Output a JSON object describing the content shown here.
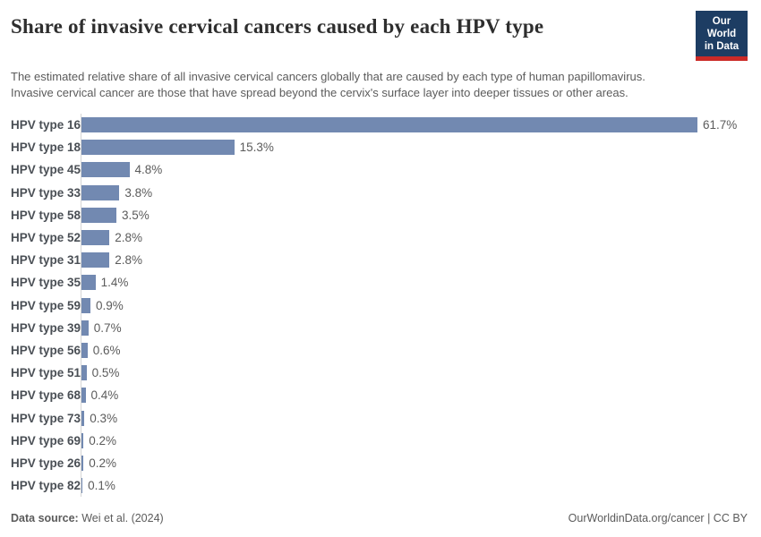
{
  "header": {
    "title": "Share of invasive cervical cancers caused by each HPV type",
    "subtitle": "The estimated relative share of all invasive cervical cancers globally that are caused by each type of human papillomavirus. Invasive cervical cancer are those that have spread beyond the cervix's surface layer into deeper tissues or other areas.",
    "logo": {
      "line1": "Our World",
      "line2": "in Data",
      "bg_color": "#1d3d63",
      "accent_color": "#cb2a27"
    }
  },
  "chart_data": {
    "type": "bar",
    "orientation": "horizontal",
    "title": "Share of invasive cervical cancers caused by each HPV type",
    "categories": [
      "HPV type 16",
      "HPV type 18",
      "HPV type 45",
      "HPV type 33",
      "HPV type 58",
      "HPV type 52",
      "HPV type 31",
      "HPV type 35",
      "HPV type 59",
      "HPV type 39",
      "HPV type 56",
      "HPV type 51",
      "HPV type 68",
      "HPV type 73",
      "HPV type 69",
      "HPV type 26",
      "HPV type 82"
    ],
    "values": [
      61.7,
      15.3,
      4.8,
      3.8,
      3.5,
      2.8,
      2.8,
      1.4,
      0.9,
      0.7,
      0.6,
      0.5,
      0.4,
      0.3,
      0.2,
      0.2,
      0.1
    ],
    "value_labels": [
      "61.7%",
      "15.3%",
      "4.8%",
      "3.8%",
      "3.5%",
      "2.8%",
      "2.8%",
      "1.4%",
      "0.9%",
      "0.7%",
      "0.6%",
      "0.5%",
      "0.4%",
      "0.3%",
      "0.2%",
      "0.2%",
      "0.1%"
    ],
    "unit": "%",
    "xlabel": "",
    "ylabel": "",
    "xlim": [
      0,
      61.7
    ],
    "grid": false,
    "legend": false,
    "bar_color": "#7289b1",
    "axis_line_color": "#d5d5d5"
  },
  "footer": {
    "source_label": "Data source:",
    "source_text": "Wei et al. (2024)",
    "url": "OurWorldinData.org/cancer",
    "separator": " | ",
    "license": "CC BY"
  }
}
